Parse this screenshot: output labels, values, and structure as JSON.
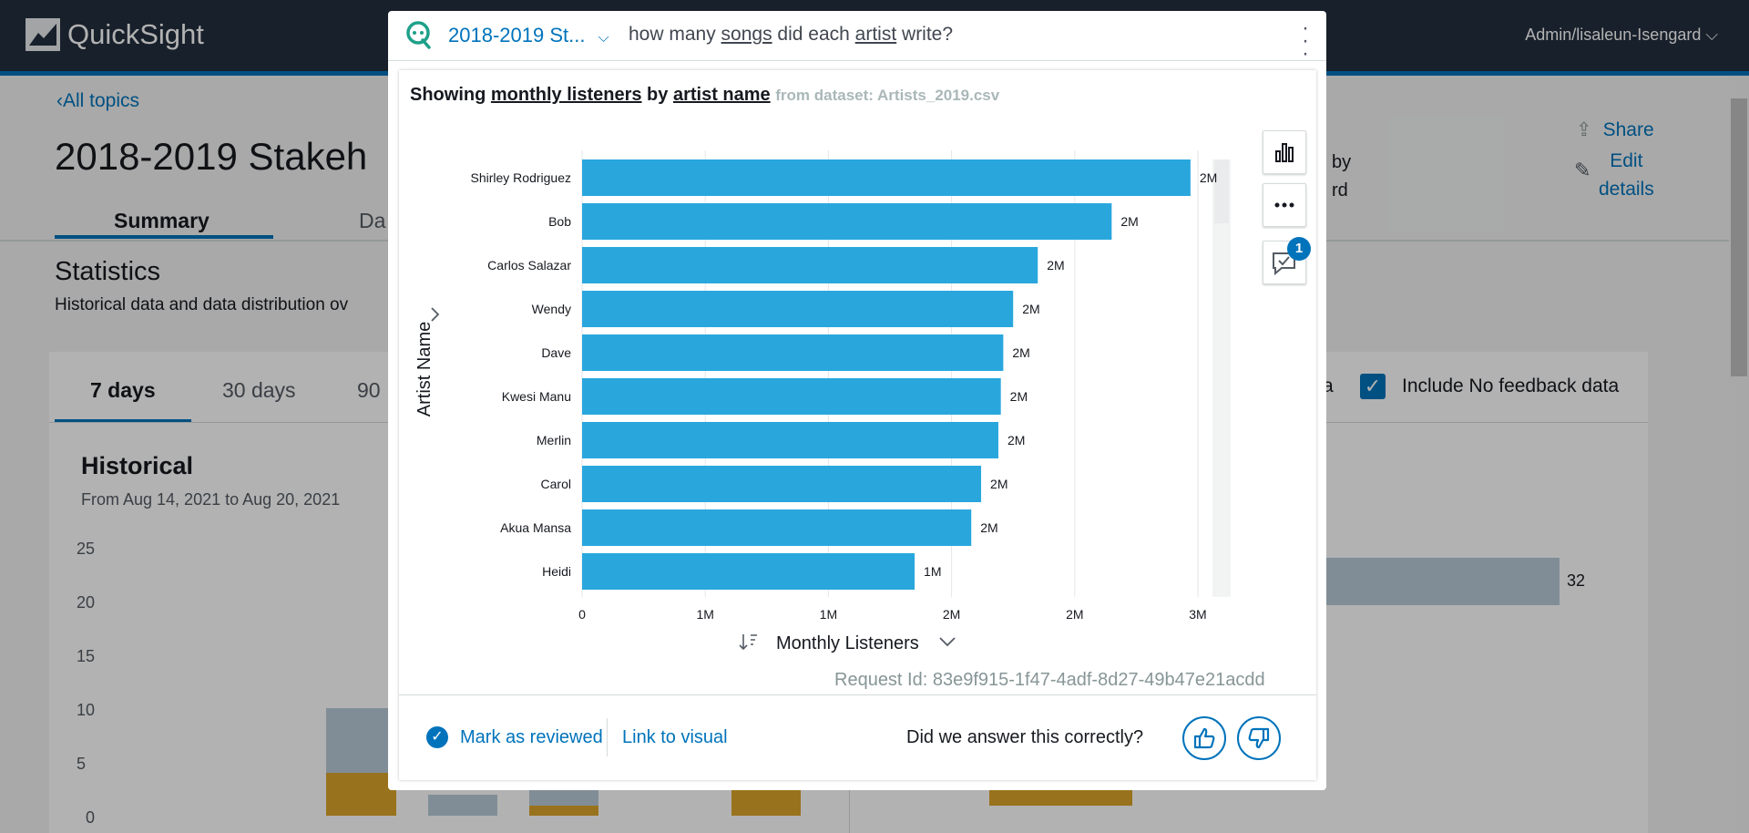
{
  "app": {
    "logo_text": "QuickSight",
    "user_menu": "Admin/lisaleun-Isengard ⌵"
  },
  "background_page": {
    "back_link": "All topics",
    "title": "2018-2019 Stakeh",
    "tabs": [
      "Summary",
      "Da"
    ],
    "statistics_title": "Statistics",
    "statistics_desc": "Historical data and data distribution ov",
    "share_label": "Share",
    "edit_details_label_1": "Edit",
    "edit_details_label_2": "details",
    "by_text_1": "by",
    "by_text_2": "rd",
    "range_tabs": [
      "7 days",
      "30 days",
      "90"
    ],
    "include_partial": "a",
    "include_label": "Include No feedback data",
    "historical_title": "Historical",
    "historical_range": "From Aug 14, 2021 to Aug 20, 2021",
    "y_ticks": [
      "25",
      "20",
      "15",
      "10",
      "5",
      "0"
    ],
    "right_bar_value": "32"
  },
  "modal": {
    "topic": "2018-2019 St...",
    "question_pre": "how many ",
    "question_w1": "songs",
    "question_mid": " did each ",
    "question_w2": "artist",
    "question_post": " write?",
    "heading_showing": "Showing ",
    "heading_measure": "monthly listeners",
    "heading_by": " by ",
    "heading_dim": "artist name",
    "heading_dataset": "from dataset: Artists_2019.csv",
    "badge_count": "1",
    "request_id": "Request Id: 83e9f915-1f47-4adf-8d27-49b47e21acdd",
    "mark_reviewed": "Mark as reviewed",
    "link_to_visual": "Link to visual",
    "feedback_question": "Did we answer this correctly?"
  },
  "colors": {
    "accent": "#0073bb",
    "bar": "#29a7dd",
    "topbar": "#232f3e",
    "bg_bar_light": "#b8cad7",
    "bg_bar_gold": "#dca42a"
  },
  "chart_data": {
    "type": "bar",
    "orientation": "horizontal",
    "ylabel": "Artist Name",
    "xlabel": "Monthly Listeners",
    "categories": [
      "Shirley Rodriguez",
      "Bob",
      "Carlos Salazar",
      "Wendy",
      "Dave",
      "Kwesi Manu",
      "Merlin",
      "Carol",
      "Akua Mansa",
      "Heidi"
    ],
    "values": [
      2470000,
      2150000,
      1850000,
      1750000,
      1710000,
      1700000,
      1690000,
      1620000,
      1580000,
      1350000
    ],
    "data_labels": [
      "2M",
      "2M",
      "2M",
      "2M",
      "2M",
      "2M",
      "2M",
      "2M",
      "2M",
      "1M"
    ],
    "x_ticks": [
      0,
      500000,
      1000000,
      1500000,
      2000000,
      2500000
    ],
    "x_tick_labels": [
      "0",
      "1M",
      "1M",
      "2M",
      "2M",
      "3M"
    ],
    "xlim": [
      0,
      2500000
    ],
    "grid": true
  }
}
